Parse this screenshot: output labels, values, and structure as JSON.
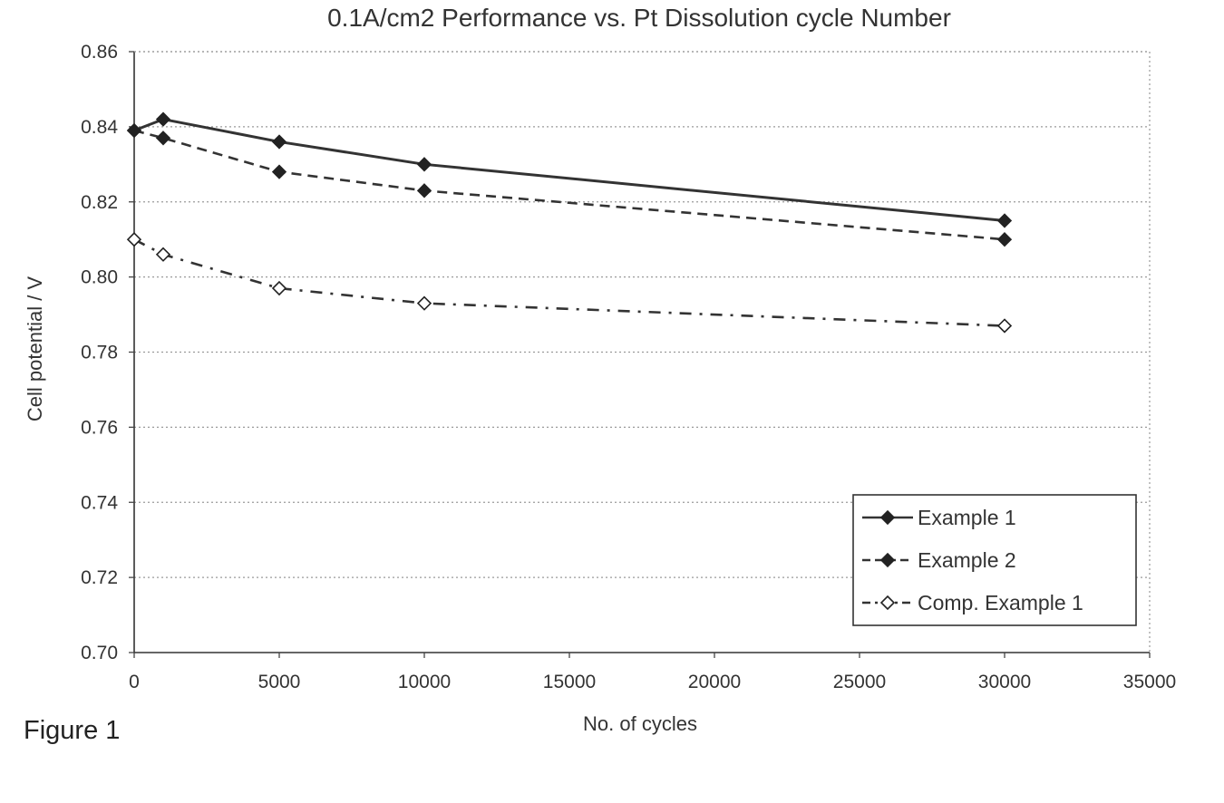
{
  "chart_data": {
    "type": "line",
    "title": "0.1A/cm2 Performance vs. Pt Dissolution cycle Number",
    "xlabel": "No. of cycles",
    "ylabel": "Cell potential / V",
    "xlim": [
      0,
      35000
    ],
    "ylim": [
      0.7,
      0.86
    ],
    "x_ticks": [
      0,
      5000,
      10000,
      15000,
      20000,
      25000,
      30000,
      35000
    ],
    "x_tick_labels": [
      "0",
      "5000",
      "10000",
      "15000",
      "20000",
      "25000",
      "30000",
      "35000"
    ],
    "y_ticks": [
      0.7,
      0.72,
      0.74,
      0.76,
      0.78,
      0.8,
      0.82,
      0.84,
      0.86
    ],
    "y_tick_labels": [
      "0.70",
      "0.72",
      "0.74",
      "0.76",
      "0.78",
      "0.80",
      "0.82",
      "0.84",
      "0.86"
    ],
    "grid": "horizontal dotted",
    "legend_position": "bottom-right",
    "x": [
      0,
      1000,
      5000,
      10000,
      30000
    ],
    "series": [
      {
        "name": "Example 1",
        "values": [
          0.839,
          0.842,
          0.836,
          0.83,
          0.815
        ],
        "line_style": "solid",
        "marker": "filled-diamond",
        "color": "#333333"
      },
      {
        "name": "Example 2",
        "values": [
          0.839,
          0.837,
          0.828,
          0.823,
          0.81
        ],
        "line_style": "dashed",
        "marker": "filled-diamond",
        "color": "#333333"
      },
      {
        "name": "Comp. Example 1",
        "values": [
          0.81,
          0.806,
          0.797,
          0.793,
          0.787
        ],
        "line_style": "dash-dot",
        "marker": "open-diamond",
        "color": "#333333"
      }
    ]
  },
  "caption": "Figure 1"
}
